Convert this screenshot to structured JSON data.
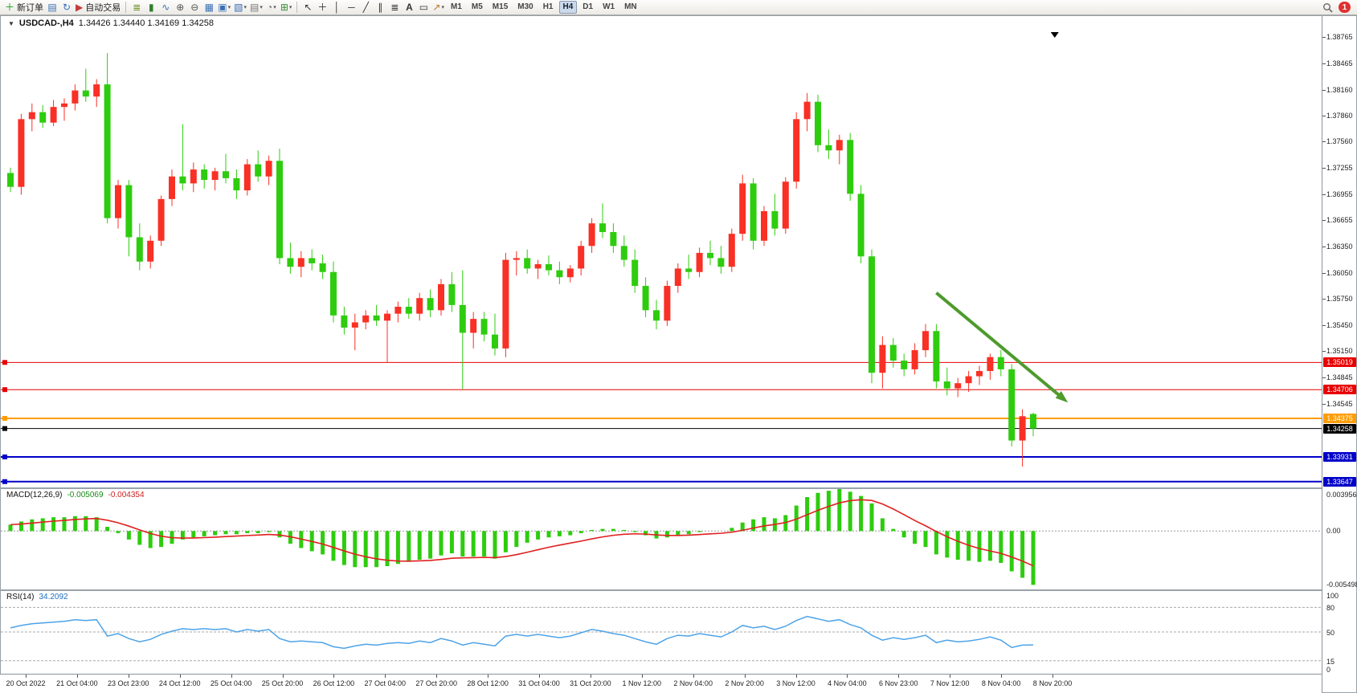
{
  "toolbar": {
    "notification_badge": "1",
    "timeframes": [
      "M1",
      "M5",
      "M15",
      "M30",
      "H1",
      "H4",
      "D1",
      "W1",
      "MN"
    ],
    "active_timeframe": "H4",
    "groups": [
      {
        "name": "order-group",
        "items": [
          {
            "name": "new-order-button",
            "glyph": "＋",
            "color": "#18a018",
            "label": "新订单"
          }
        ]
      },
      {
        "name": "window-group",
        "items": [
          {
            "name": "charts-window-button",
            "glyph": "▤",
            "color": "#3b6fb5"
          },
          {
            "name": "refresh-button",
            "glyph": "↻",
            "color": "#3b6fb5"
          }
        ]
      },
      {
        "name": "autotrading-group",
        "items": [
          {
            "name": "autotrading-button",
            "glyph": "▶",
            "color": "#c43c3c",
            "label": "自动交易"
          }
        ]
      },
      {
        "name": "sep-1",
        "sep": true
      },
      {
        "name": "chart-type-group",
        "items": [
          {
            "name": "bar-chart-button",
            "glyph": "≣",
            "color": "#6b8e23"
          },
          {
            "name": "candlestick-chart-button",
            "glyph": "▮",
            "color": "#2f7d2f"
          },
          {
            "name": "line-chart-button",
            "glyph": "∿",
            "color": "#3b6fb5"
          }
        ]
      },
      {
        "name": "zoom-group",
        "items": [
          {
            "name": "zoom-in-button",
            "glyph": "⊕",
            "color": "#555555"
          },
          {
            "name": "zoom-out-button",
            "glyph": "⊖",
            "color": "#555555"
          }
        ]
      },
      {
        "name": "arrange-group",
        "items": [
          {
            "name": "tile-windows-button",
            "glyph": "▦",
            "color": "#3b6fb5"
          },
          {
            "name": "arrange-windows-button",
            "glyph": "▣",
            "color": "#3b6fb5",
            "dropdown": true
          },
          {
            "name": "cascade-windows-button",
            "glyph": "▧",
            "color": "#3b6fb5",
            "dropdown": true
          }
        ]
      },
      {
        "name": "tools-group",
        "items": [
          {
            "name": "profiles-button",
            "glyph": "▤",
            "color": "#777777",
            "dropdown": true
          },
          {
            "name": "periods-button",
            "glyph": "◔",
            "color": "#777777",
            "dropdown": true
          },
          {
            "name": "indicators-button",
            "glyph": "⊞",
            "color": "#2e8b2e",
            "dropdown": true
          }
        ]
      },
      {
        "name": "sep-2",
        "sep": true
      },
      {
        "name": "objects-group",
        "items": [
          {
            "name": "cursor-button",
            "glyph": "↖",
            "color": "#333333"
          },
          {
            "name": "crosshair-button",
            "glyph": "＋",
            "color": "#333333"
          },
          {
            "name": "vertical-line-button",
            "glyph": "│",
            "color": "#333333"
          },
          {
            "name": "horizontal-line-button",
            "glyph": "─",
            "color": "#333333"
          },
          {
            "name": "trendline-button",
            "glyph": "╱",
            "color": "#333333"
          },
          {
            "name": "channel-button",
            "glyph": "∥",
            "color": "#333333"
          },
          {
            "name": "fibonacci-button",
            "glyph": "≣",
            "color": "#333333"
          },
          {
            "name": "text-button",
            "glyph": "A",
            "color": "#333333",
            "bold": true
          },
          {
            "name": "text-label-button",
            "glyph": "▭",
            "color": "#333333"
          },
          {
            "name": "shapes-button",
            "glyph": "↗",
            "color": "#b87820",
            "dropdown": true
          }
        ]
      }
    ]
  },
  "window": {
    "title": "USDCAD-,H4",
    "ohlc": "1.34426 1.34440 1.34169 1.34258"
  },
  "chart_data": {
    "type": "candlestick",
    "symbol": "USDCAD",
    "period": "H4",
    "colors": {
      "bull": "#f93025",
      "bear": "#2ecc0e",
      "background": "#ffffff"
    },
    "ylim": [
      1.3358,
      1.3884
    ],
    "candles": [
      [
        1.372,
        1.3726,
        1.3698,
        1.3704
      ],
      [
        1.3704,
        1.3788,
        1.3695,
        1.3782
      ],
      [
        1.3782,
        1.38,
        1.3768,
        1.379
      ],
      [
        1.379,
        1.3798,
        1.3772,
        1.3778
      ],
      [
        1.3778,
        1.3804,
        1.3774,
        1.3796
      ],
      [
        1.3796,
        1.3806,
        1.378,
        1.38
      ],
      [
        1.38,
        1.3822,
        1.3792,
        1.3815
      ],
      [
        1.3815,
        1.384,
        1.3802,
        1.3808
      ],
      [
        1.3808,
        1.3828,
        1.3796,
        1.3822
      ],
      [
        1.3822,
        1.3858,
        1.3662,
        1.3668
      ],
      [
        1.3668,
        1.3712,
        1.3656,
        1.3706
      ],
      [
        1.3706,
        1.3712,
        1.3624,
        1.3646
      ],
      [
        1.3646,
        1.3662,
        1.3608,
        1.3618
      ],
      [
        1.3618,
        1.3648,
        1.361,
        1.3642
      ],
      [
        1.3642,
        1.3694,
        1.3636,
        1.369
      ],
      [
        1.369,
        1.3724,
        1.3682,
        1.3716
      ],
      [
        1.3716,
        1.3776,
        1.37,
        1.3708
      ],
      [
        1.3708,
        1.3732,
        1.3698,
        1.3724
      ],
      [
        1.3724,
        1.373,
        1.3702,
        1.3712
      ],
      [
        1.3712,
        1.3726,
        1.37,
        1.3722
      ],
      [
        1.3722,
        1.3742,
        1.3708,
        1.3714
      ],
      [
        1.3714,
        1.3724,
        1.369,
        1.37
      ],
      [
        1.37,
        1.3736,
        1.3694,
        1.373
      ],
      [
        1.373,
        1.3746,
        1.371,
        1.3716
      ],
      [
        1.3716,
        1.374,
        1.3706,
        1.3734
      ],
      [
        1.3734,
        1.3748,
        1.3615,
        1.3622
      ],
      [
        1.3622,
        1.364,
        1.3604,
        1.3612
      ],
      [
        1.3612,
        1.363,
        1.36,
        1.3622
      ],
      [
        1.3622,
        1.3632,
        1.3608,
        1.3616
      ],
      [
        1.3616,
        1.3626,
        1.3598,
        1.3606
      ],
      [
        1.3606,
        1.3618,
        1.3548,
        1.3556
      ],
      [
        1.3556,
        1.3566,
        1.3534,
        1.3542
      ],
      [
        1.3542,
        1.3558,
        1.3516,
        1.3548
      ],
      [
        1.3548,
        1.3562,
        1.354,
        1.3556
      ],
      [
        1.3556,
        1.3568,
        1.3544,
        1.355
      ],
      [
        1.355,
        1.3562,
        1.3502,
        1.3558
      ],
      [
        1.3558,
        1.3572,
        1.3548,
        1.3566
      ],
      [
        1.3566,
        1.3576,
        1.3552,
        1.3558
      ],
      [
        1.3558,
        1.3582,
        1.355,
        1.3576
      ],
      [
        1.3576,
        1.3586,
        1.3554,
        1.3562
      ],
      [
        1.3562,
        1.3598,
        1.3556,
        1.3592
      ],
      [
        1.3592,
        1.3606,
        1.356,
        1.3568
      ],
      [
        1.3568,
        1.3608,
        1.3471,
        1.3536
      ],
      [
        1.3536,
        1.356,
        1.3518,
        1.3552
      ],
      [
        1.3552,
        1.356,
        1.3526,
        1.3534
      ],
      [
        1.3534,
        1.3558,
        1.351,
        1.3518
      ],
      [
        1.3518,
        1.3628,
        1.3508,
        1.362
      ],
      [
        1.362,
        1.363,
        1.3602,
        1.3622
      ],
      [
        1.3622,
        1.3632,
        1.3604,
        1.361
      ],
      [
        1.361,
        1.362,
        1.3598,
        1.3615
      ],
      [
        1.3615,
        1.3625,
        1.3602,
        1.3608
      ],
      [
        1.3608,
        1.3618,
        1.3592,
        1.36
      ],
      [
        1.36,
        1.3614,
        1.3594,
        1.361
      ],
      [
        1.361,
        1.3642,
        1.3602,
        1.3636
      ],
      [
        1.3636,
        1.3668,
        1.3628,
        1.3662
      ],
      [
        1.3662,
        1.3685,
        1.3645,
        1.3652
      ],
      [
        1.3652,
        1.3662,
        1.3628,
        1.3636
      ],
      [
        1.3636,
        1.3648,
        1.3612,
        1.362
      ],
      [
        1.362,
        1.3632,
        1.3582,
        1.359
      ],
      [
        1.359,
        1.36,
        1.3554,
        1.3562
      ],
      [
        1.3562,
        1.3574,
        1.354,
        1.355
      ],
      [
        1.355,
        1.3596,
        1.3544,
        1.359
      ],
      [
        1.359,
        1.3616,
        1.3582,
        1.361
      ],
      [
        1.361,
        1.3626,
        1.3598,
        1.3606
      ],
      [
        1.3606,
        1.3634,
        1.36,
        1.3628
      ],
      [
        1.3628,
        1.3642,
        1.3614,
        1.3622
      ],
      [
        1.3622,
        1.3636,
        1.3604,
        1.3612
      ],
      [
        1.3612,
        1.3656,
        1.3606,
        1.365
      ],
      [
        1.365,
        1.3718,
        1.3642,
        1.3708
      ],
      [
        1.3708,
        1.3714,
        1.3632,
        1.3642
      ],
      [
        1.3642,
        1.3682,
        1.3636,
        1.3676
      ],
      [
        1.3676,
        1.3696,
        1.3648,
        1.3656
      ],
      [
        1.3656,
        1.3715,
        1.365,
        1.371
      ],
      [
        1.371,
        1.379,
        1.3702,
        1.3782
      ],
      [
        1.3782,
        1.3812,
        1.3768,
        1.3802
      ],
      [
        1.3802,
        1.381,
        1.3744,
        1.3752
      ],
      [
        1.3752,
        1.377,
        1.3736,
        1.3746
      ],
      [
        1.3746,
        1.3764,
        1.373,
        1.3758
      ],
      [
        1.3758,
        1.3766,
        1.3688,
        1.3696
      ],
      [
        1.3696,
        1.3706,
        1.3616,
        1.3624
      ],
      [
        1.3624,
        1.3632,
        1.3478,
        1.349
      ],
      [
        1.349,
        1.3532,
        1.3472,
        1.3522
      ],
      [
        1.3522,
        1.353,
        1.3496,
        1.3504
      ],
      [
        1.3504,
        1.3512,
        1.3486,
        1.3494
      ],
      [
        1.3494,
        1.3524,
        1.3488,
        1.3516
      ],
      [
        1.3516,
        1.3546,
        1.3508,
        1.3538
      ],
      [
        1.3538,
        1.3546,
        1.3472,
        1.348
      ],
      [
        1.348,
        1.3496,
        1.3464,
        1.3472
      ],
      [
        1.3472,
        1.3484,
        1.3462,
        1.3478
      ],
      [
        1.3478,
        1.3492,
        1.3468,
        1.3486
      ],
      [
        1.3486,
        1.3498,
        1.3476,
        1.3492
      ],
      [
        1.3492,
        1.3512,
        1.3482,
        1.3508
      ],
      [
        1.3508,
        1.3516,
        1.3486,
        1.3494
      ],
      [
        1.3494,
        1.35,
        1.3405,
        1.3412
      ],
      [
        1.3412,
        1.3448,
        1.3382,
        1.344
      ],
      [
        1.34426,
        1.3444,
        1.34169,
        1.34258
      ]
    ],
    "hlines": [
      {
        "price": 1.35019,
        "label": "1.35019",
        "color": "#e80000",
        "width": 1
      },
      {
        "price": 1.34706,
        "label": "1.34706",
        "color": "#e80000",
        "width": 1
      },
      {
        "price": 1.34375,
        "label": "1.34375",
        "color": "#ff9c00",
        "width": 2
      },
      {
        "price": 1.34258,
        "label": "1.34258",
        "color": "#000000",
        "width": 1
      },
      {
        "price": 1.33931,
        "label": "1.33931",
        "color": "#0000c8",
        "width": 2
      },
      {
        "price": 1.33647,
        "label": "1.33647",
        "color": "#0000c8",
        "width": 2
      }
    ],
    "price_axis_labels": [
      "1.38765",
      "1.38465",
      "1.38160",
      "1.37860",
      "1.37560",
      "1.37255",
      "1.36955",
      "1.36655",
      "1.36350",
      "1.36050",
      "1.35750",
      "1.35450",
      "1.35150",
      "1.34845",
      "1.34545"
    ],
    "trend_arrow": {
      "from": {
        "i": 86,
        "price": 1.3582
      },
      "to": {
        "i": 98,
        "price": 1.3458
      },
      "color": "#4e9b2d"
    },
    "shift_marker_i": 97,
    "macd": {
      "label": "MACD(12,26,9)",
      "value": "-0.005069",
      "signal_value": "-0.004354",
      "ylim": [
        -0.005498,
        0.003956
      ],
      "axis_labels": [
        {
          "v": 0.003956,
          "t": "0.003956"
        },
        {
          "v": 0,
          "t": "0.00"
        },
        {
          "v": -0.005498,
          "t": "-0.005498"
        }
      ],
      "bar_color": "#2ecc0e",
      "signal_color": "#e02020",
      "values": [
        0.0006,
        0.0009,
        0.0011,
        0.0012,
        0.0013,
        0.0013,
        0.0014,
        0.0014,
        0.0013,
        0.0004,
        -0.0002,
        -0.0008,
        -0.0013,
        -0.0016,
        -0.0015,
        -0.0012,
        -0.0008,
        -0.0006,
        -0.0005,
        -0.0004,
        -0.0003,
        -0.0003,
        -0.0002,
        -0.0002,
        -0.0001,
        -0.0006,
        -0.0012,
        -0.0016,
        -0.0019,
        -0.0022,
        -0.0028,
        -0.0032,
        -0.0034,
        -0.0034,
        -0.0034,
        -0.0033,
        -0.0031,
        -0.0029,
        -0.0027,
        -0.0026,
        -0.0023,
        -0.0021,
        -0.0024,
        -0.0024,
        -0.0024,
        -0.0026,
        -0.002,
        -0.0015,
        -0.0011,
        -0.0008,
        -0.0006,
        -0.0005,
        -0.0004,
        -0.0002,
        0.0001,
        0.0002,
        0.0002,
        0.0001,
        -0.0001,
        -0.0004,
        -0.0007,
        -0.0006,
        -0.0004,
        -0.0003,
        -0.0001,
        0.0,
        0.0,
        0.0003,
        0.0008,
        0.0011,
        0.0013,
        0.0012,
        0.0015,
        0.0024,
        0.0032,
        0.0036,
        0.0038,
        0.004,
        0.0037,
        0.0033,
        0.0026,
        0.0012,
        0.0002,
        -0.0006,
        -0.0012,
        -0.0015,
        -0.0022,
        -0.0025,
        -0.0027,
        -0.0028,
        -0.0029,
        -0.0028,
        -0.003,
        -0.0038,
        -0.0044,
        -0.005069
      ]
    },
    "rsi": {
      "label": "RSI(14)",
      "value": "34.2092",
      "ylim": [
        0,
        100
      ],
      "levels": [
        80,
        50,
        15
      ],
      "axis_labels": [
        {
          "v": 100,
          "t": "100"
        },
        {
          "v": 80,
          "t": "80"
        },
        {
          "v": 50,
          "t": "50"
        },
        {
          "v": 15,
          "t": "15"
        },
        {
          "v": 0,
          "t": "0"
        }
      ],
      "line_color": "#4da3e8",
      "values": [
        55,
        58,
        60,
        61,
        62,
        63,
        65,
        64,
        65,
        45,
        48,
        42,
        38,
        41,
        47,
        51,
        54,
        53,
        54,
        53,
        54,
        50,
        53,
        51,
        53,
        42,
        38,
        39,
        38,
        37,
        32,
        30,
        33,
        35,
        34,
        36,
        37,
        36,
        39,
        37,
        42,
        39,
        34,
        37,
        35,
        33,
        45,
        47,
        45,
        47,
        45,
        43,
        45,
        49,
        53,
        51,
        48,
        46,
        42,
        38,
        35,
        42,
        46,
        45,
        48,
        46,
        44,
        50,
        58,
        55,
        57,
        53,
        57,
        64,
        69,
        66,
        63,
        65,
        59,
        55,
        46,
        40,
        43,
        41,
        43,
        46,
        37,
        40,
        38,
        39,
        41,
        44,
        40,
        31,
        34,
        34.2
      ]
    },
    "time_axis": [
      "20 Oct 2022",
      "21 Oct 04:00",
      "23 Oct 23:00",
      "24 Oct 12:00",
      "25 Oct 04:00",
      "25 Oct 20:00",
      "26 Oct 12:00",
      "27 Oct 04:00",
      "27 Oct 20:00",
      "28 Oct 12:00",
      "31 Oct 04:00",
      "31 Oct 20:00",
      "1 Nov 12:00",
      "2 Nov 04:00",
      "2 Nov 20:00",
      "3 Nov 12:00",
      "4 Nov 04:00",
      "6 Nov 23:00",
      "7 Nov 12:00",
      "8 Nov 04:00",
      "8 Nov 20:00"
    ]
  }
}
